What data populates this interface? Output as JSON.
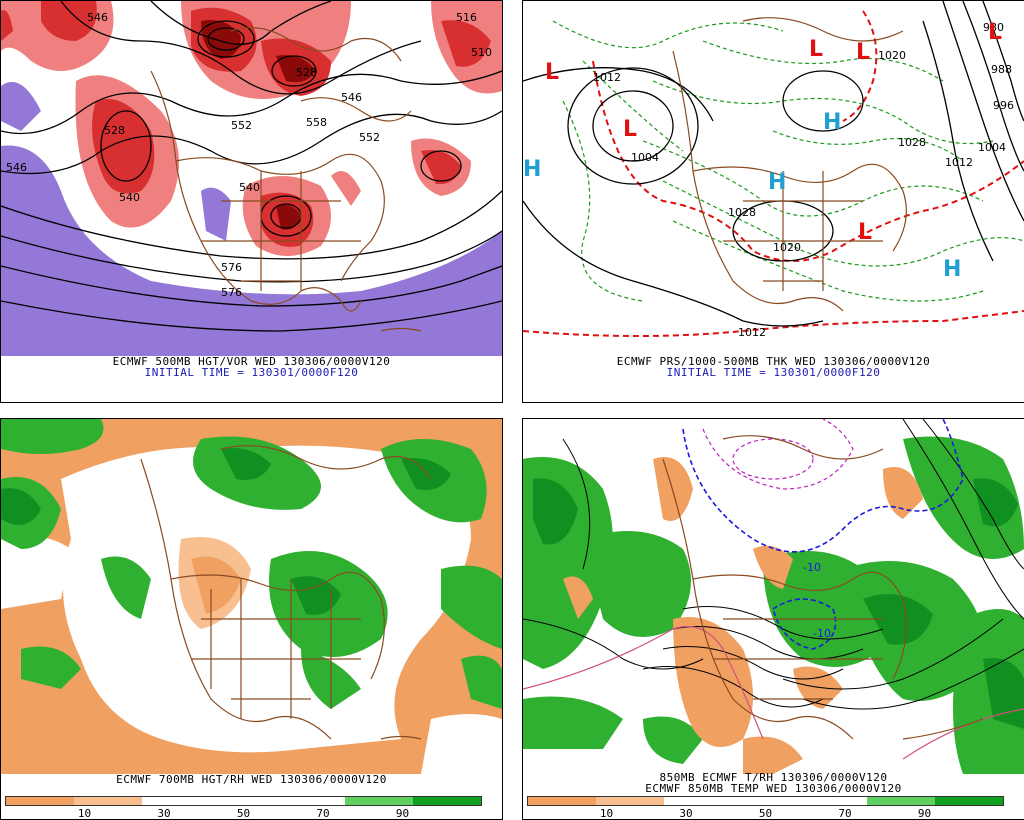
{
  "panels": [
    {
      "caption1": "ECMWF 500MB HGT/VOR WED 130306/0000V120",
      "caption2": "INITIAL TIME = 130301/0000F120",
      "contour_labels": [
        "546",
        "528",
        "540",
        "552",
        "540",
        "528",
        "546",
        "552",
        "546",
        "558",
        "576",
        "516",
        "510",
        "576"
      ]
    },
    {
      "caption1": "ECMWF PRS/1000-500MB THK WED 130306/0000V120",
      "caption2": "INITIAL TIME = 130301/0000F120",
      "contour_labels": [
        "1012",
        "1004",
        "1020",
        "1028",
        "1028",
        "1020",
        "980",
        "988",
        "996",
        "1004",
        "1012",
        "1012"
      ],
      "pressure_centers": [
        "L",
        "L",
        "L",
        "L",
        "L",
        "L",
        "H",
        "H",
        "H",
        "H"
      ]
    },
    {
      "caption1": "ECMWF 700MB HGT/RH WED 130306/0000V120",
      "colorbar": {
        "ticks": [
          "10",
          "30",
          "50",
          "70",
          "90"
        ],
        "colors": [
          "#f0a060",
          "#f8c090",
          "#ffffff",
          "#ffffff",
          "#ffffff",
          "#60d060",
          "#10a020"
        ]
      }
    },
    {
      "caption1": "850MB ECMWF T/RH 130306/0000V120",
      "caption2": "ECMWF 850MB TEMP WED 130306/0000V120",
      "contour_labels": [
        "-10",
        "-10"
      ],
      "colorbar": {
        "ticks": [
          "10",
          "30",
          "50",
          "70",
          "90"
        ],
        "colors": [
          "#f0a060",
          "#f8c090",
          "#ffffff",
          "#ffffff",
          "#ffffff",
          "#60d060",
          "#10a020"
        ]
      }
    }
  ],
  "colors": {
    "vorticity_red": "#d83030",
    "vorticity_pink": "#f08080",
    "vorticity_dark": "#8a0a0a",
    "negative_vort": "#8060d0",
    "rh_dry": "#f0a060",
    "rh_moist": "#30b030",
    "rh_wet": "#109020",
    "low_red": "#e01010",
    "high_cyan": "#20a0d0",
    "coast_brown": "#8a4a20",
    "caption_blue": "#1a1ab0"
  }
}
